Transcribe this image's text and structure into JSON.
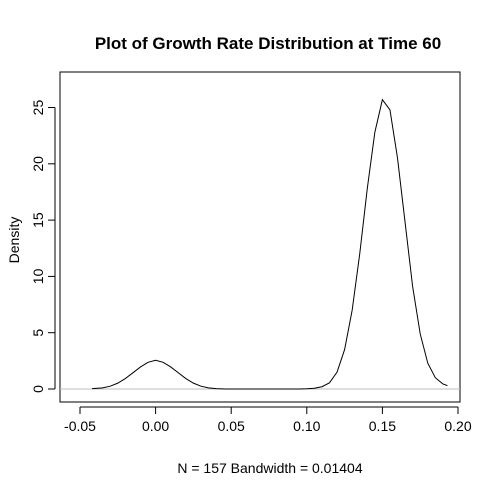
{
  "chart_data": {
    "type": "line",
    "title": "Plot of Growth Rate Distribution at Time 60",
    "xlabel": "N = 157   Bandwidth = 0.01404",
    "ylabel": "Density",
    "xlim": [
      -0.05,
      0.2
    ],
    "ylim": [
      0,
      27
    ],
    "x_ticks": [
      -0.05,
      0.0,
      0.05,
      0.1,
      0.15,
      0.2
    ],
    "x_tick_labels": [
      "-0.05",
      "0.00",
      "0.05",
      "0.10",
      "0.15",
      "0.20"
    ],
    "y_ticks": [
      0,
      5,
      10,
      15,
      20,
      25
    ],
    "y_tick_labels": [
      "0",
      "5",
      "10",
      "15",
      "20",
      "25"
    ],
    "baseline": 0,
    "baseline_color": "#bebebe",
    "line_color": "#000000",
    "grid": false,
    "series": [
      {
        "x": [
          -0.042,
          -0.035,
          -0.03,
          -0.025,
          -0.02,
          -0.015,
          -0.01,
          -0.005,
          0.0,
          0.005,
          0.01,
          0.015,
          0.02,
          0.025,
          0.03,
          0.035,
          0.04,
          0.046,
          0.095,
          0.1,
          0.105,
          0.11,
          0.115,
          0.12,
          0.125,
          0.13,
          0.135,
          0.14,
          0.145,
          0.15,
          0.155,
          0.16,
          0.165,
          0.17,
          0.175,
          0.18,
          0.185,
          0.19,
          0.193
        ],
        "y": [
          0.03,
          0.1,
          0.25,
          0.52,
          0.93,
          1.44,
          1.96,
          2.37,
          2.55,
          2.37,
          1.96,
          1.44,
          0.93,
          0.52,
          0.25,
          0.1,
          0.03,
          0.0,
          0.0,
          0.02,
          0.07,
          0.2,
          0.55,
          1.5,
          3.5,
          7.0,
          12.0,
          17.8,
          22.8,
          25.7,
          24.8,
          20.5,
          14.8,
          9.1,
          4.9,
          2.3,
          1.0,
          0.45,
          0.3
        ]
      }
    ]
  }
}
